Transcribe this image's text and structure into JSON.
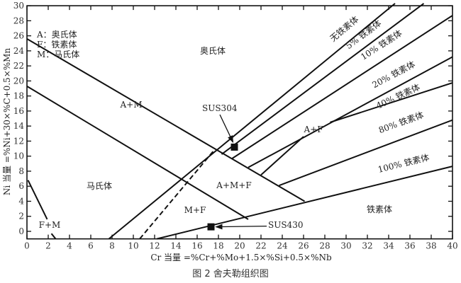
{
  "caption": "图 2   舍夫勒组织图",
  "chart_data": {
    "type": "line",
    "title": "",
    "xlabel": "Cr 当量 =%Cr+%Mo+1.5×%Si+0.5×%Nb",
    "ylabel": "Ni 当量 =%Ni+30×%C+0.5×%Mn",
    "xlim": [
      0,
      40
    ],
    "ylim": [
      -1,
      30
    ],
    "xticks": [
      0,
      2,
      4,
      6,
      8,
      10,
      12,
      14,
      16,
      18,
      20,
      22,
      24,
      26,
      28,
      30,
      32,
      34,
      36,
      38,
      40
    ],
    "yticks": [
      0,
      2,
      4,
      6,
      8,
      10,
      12,
      14,
      16,
      18,
      20,
      22,
      24,
      26,
      28,
      30
    ],
    "grid": false,
    "legend": {
      "placement": "top-left",
      "entries": [
        "A：奥氏体",
        "F：铁素体",
        "M：马氏体"
      ]
    },
    "boundaries": [
      {
        "id": "austenite-upper",
        "style": "solid",
        "points": [
          [
            0,
            25.6
          ],
          [
            26.1,
            4.0
          ]
        ]
      },
      {
        "id": "martensite-upper",
        "style": "solid",
        "points": [
          [
            0,
            19.3
          ],
          [
            20.8,
            1.6
          ]
        ]
      },
      {
        "id": "ferrite-0",
        "style": "solid",
        "points": [
          [
            7.7,
            -1
          ],
          [
            34.6,
            30.3
          ]
        ]
      },
      {
        "id": "dashed",
        "style": "dashed",
        "points": [
          [
            10.6,
            -1
          ],
          [
            17.6,
            10.8
          ]
        ]
      },
      {
        "id": "ferrite-5",
        "style": "solid",
        "points": [
          [
            18.3,
            10.25
          ],
          [
            37.3,
            30.3
          ]
        ]
      },
      {
        "id": "ferrite-10",
        "style": "solid",
        "points": [
          [
            19.3,
            9.7
          ],
          [
            40,
            28.7
          ]
        ]
      },
      {
        "id": "ferrite-20",
        "style": "solid",
        "points": [
          [
            20.8,
            8.5
          ],
          [
            40,
            23.2
          ]
        ]
      },
      {
        "id": "ferrite-40a",
        "style": "solid",
        "points": [
          [
            22.0,
            7.5
          ],
          [
            26.0,
            12.6
          ]
        ]
      },
      {
        "id": "ferrite-40b",
        "style": "solid",
        "points": [
          [
            28.5,
            14.5
          ],
          [
            40,
            19.75
          ]
        ]
      },
      {
        "id": "ferrite-80",
        "style": "solid",
        "points": [
          [
            23.7,
            6.1
          ],
          [
            40,
            14.8
          ]
        ]
      },
      {
        "id": "ferrite-100",
        "style": "solid",
        "points": [
          [
            12.2,
            -1
          ],
          [
            40,
            8.65
          ]
        ]
      },
      {
        "id": "fm-a",
        "style": "solid",
        "points": [
          [
            0.1,
            6.8
          ],
          [
            1.9,
            1.6
          ]
        ]
      },
      {
        "id": "fm-b",
        "style": "solid",
        "points": [
          [
            2.3,
            -0.3
          ],
          [
            2.7,
            -1
          ]
        ]
      }
    ],
    "regions": [
      "奥氏体",
      "A+M",
      "马氏体",
      "A+M+F",
      "M+F",
      "A+F",
      "铁素体",
      "F+M"
    ],
    "ferrite_labels": [
      "无铁素体",
      "5% 铁素体",
      "10% 铁素体",
      "20% 铁素体",
      "40% 铁素体",
      "80% 铁素体",
      "100% 铁素体"
    ],
    "points": [
      {
        "name": "SUS304",
        "x": 19.5,
        "y": 11.2
      },
      {
        "name": "SUS430",
        "x": 17.3,
        "y": 0.6
      }
    ]
  }
}
